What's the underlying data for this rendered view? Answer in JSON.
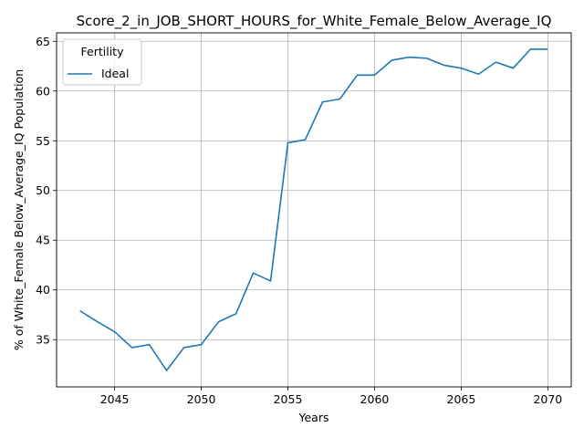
{
  "chart_data": {
    "type": "line",
    "title": "Score_2_in_JOB_SHORT_HOURS_for_White_Female_Below_Average_IQ",
    "xlabel": "Years",
    "ylabel": "% of White_Female Below_Average_IQ Population",
    "xlim": [
      2041.65,
      2071.35
    ],
    "ylim": [
      30.25,
      65.85
    ],
    "xticks": [
      2045,
      2050,
      2055,
      2060,
      2065,
      2070
    ],
    "yticks": [
      35,
      40,
      45,
      50,
      55,
      60,
      65
    ],
    "grid": true,
    "legend": {
      "title": "Fertility",
      "position": "top-left"
    },
    "series": [
      {
        "name": "Ideal",
        "color": "#1f77b4",
        "x": [
          2043,
          2044,
          2045,
          2046,
          2047,
          2048,
          2049,
          2050,
          2051,
          2052,
          2053,
          2054,
          2055,
          2056,
          2057,
          2058,
          2059,
          2060,
          2061,
          2062,
          2063,
          2064,
          2065,
          2066,
          2067,
          2068,
          2069,
          2070
        ],
        "y": [
          37.9,
          36.8,
          35.8,
          34.2,
          34.5,
          31.9,
          34.2,
          34.5,
          36.8,
          37.6,
          41.7,
          40.9,
          54.8,
          55.1,
          58.9,
          59.2,
          61.6,
          61.6,
          63.1,
          63.4,
          63.3,
          62.6,
          62.3,
          61.7,
          62.9,
          62.3,
          64.2,
          64.2
        ]
      }
    ]
  }
}
